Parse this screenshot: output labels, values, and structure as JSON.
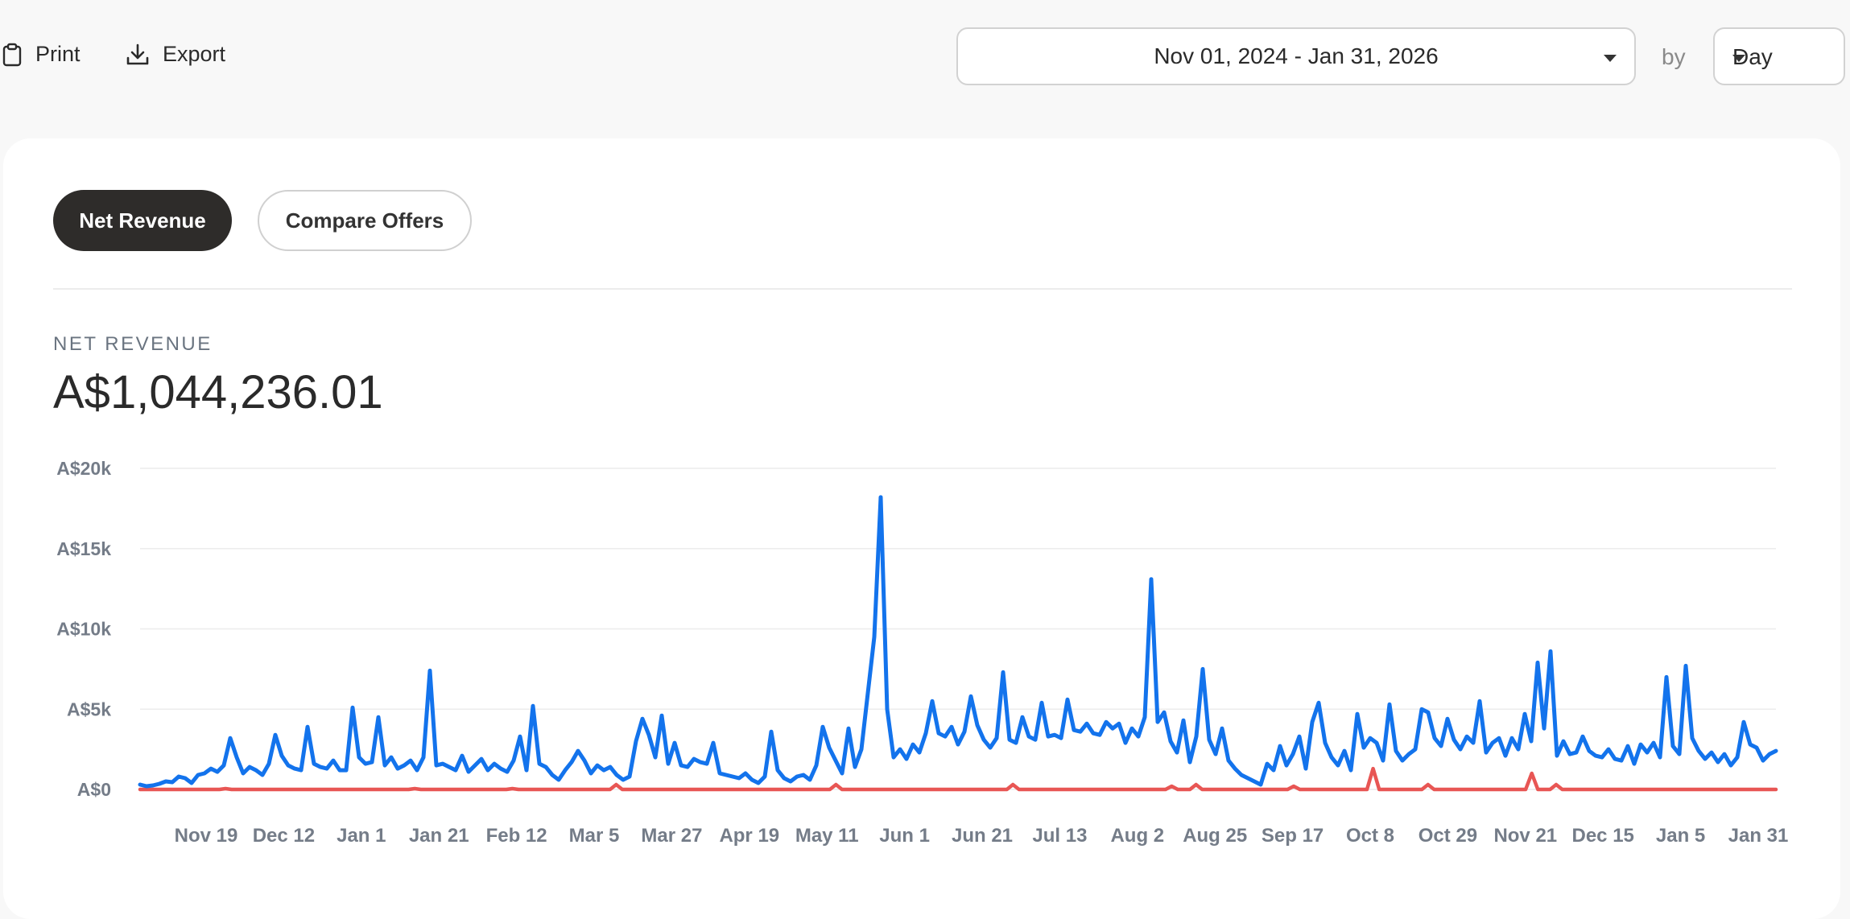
{
  "toolbar": {
    "print_label": "Print",
    "export_label": "Export",
    "date_range": "Nov 01, 2024 - Jan 31, 2026",
    "by_label": "by",
    "period": "Day"
  },
  "tabs": [
    {
      "label": "Net Revenue",
      "active": true
    },
    {
      "label": "Compare Offers",
      "active": false
    }
  ],
  "metric": {
    "label": "NET REVENUE",
    "value": "A$1,044,236.01"
  },
  "colors": {
    "series_primary": "#1373ec",
    "series_secondary": "#e85654",
    "active_tab": "#2e2c2a"
  },
  "chart_data": {
    "type": "line",
    "y_ticks": [
      "A$20k",
      "A$15k",
      "A$10k",
      "A$5k",
      "A$0"
    ],
    "x_ticks": [
      "Nov 19",
      "Dec 12",
      "Jan 1",
      "Jan 21",
      "Feb 12",
      "Mar 5",
      "Mar 27",
      "Apr 19",
      "May 11",
      "Jun 1",
      "Jun 21",
      "Jul 13",
      "Aug 2",
      "Aug 25",
      "Sep 17",
      "Oct 8",
      "Oct 29",
      "Nov 21",
      "Dec 15",
      "Jan 5",
      "Jan 31"
    ],
    "ylim": [
      0,
      20000
    ],
    "grid": true,
    "series": [
      {
        "values": [
          300,
          200,
          250,
          350,
          500,
          450,
          800,
          700,
          400,
          900,
          1000,
          1300,
          1100,
          1500,
          3200,
          2000,
          1000,
          1400,
          1200,
          900,
          1600,
          3400,
          2100,
          1500,
          1300,
          1200,
          3900,
          1600,
          1400,
          1300,
          1800,
          1200,
          1200,
          5100,
          2000,
          1600,
          1700,
          4500,
          1500,
          2000,
          1300,
          1500,
          1800,
          1200,
          2000,
          7400,
          1500,
          1600,
          1400,
          1200,
          2100,
          1100,
          1500,
          1900,
          1200,
          1600,
          1300,
          1100,
          1800,
          3300,
          1200,
          5200,
          1600,
          1400,
          900,
          600,
          1200,
          1700,
          2400,
          1800,
          1000,
          1500,
          1200,
          1400,
          900,
          600,
          800,
          3000,
          4400,
          3400,
          2000,
          4600,
          1600,
          2900,
          1500,
          1400,
          1900,
          1700,
          1600,
          2900,
          1000,
          900,
          800,
          700,
          1000,
          600,
          400,
          800,
          3600,
          1200,
          700,
          500,
          800,
          900,
          600,
          1500,
          3900,
          2600,
          1800,
          1000,
          3800,
          1400,
          2500,
          6000,
          9500,
          18200,
          5000,
          2000,
          2500,
          1900,
          2800,
          2300,
          3500,
          5500,
          3500,
          3300,
          3900,
          2800,
          3600,
          5800,
          4000,
          3100,
          2600,
          3200,
          7300,
          3100,
          2900,
          4500,
          3300,
          3100,
          5400,
          3300,
          3400,
          3200,
          5600,
          3700,
          3600,
          4100,
          3500,
          3400,
          4200,
          3800,
          4100,
          2900,
          3800,
          3300,
          4500,
          13100,
          4200,
          4800,
          3000,
          2300,
          4300,
          1700,
          3300,
          7500,
          3100,
          2200,
          3800,
          1800,
          1300,
          900,
          700,
          500,
          300,
          1600,
          1200,
          2700,
          1500,
          2200,
          3300,
          1300,
          4200,
          5400,
          2900,
          2000,
          1500,
          2400,
          1200,
          4700,
          2600,
          3200,
          2900,
          1800,
          5300,
          2400,
          1800,
          2200,
          2500,
          5000,
          4800,
          3200,
          2700,
          4400,
          3100,
          2500,
          3300,
          2900,
          5500,
          2300,
          2900,
          3200,
          2100,
          3200,
          2500,
          4700,
          3000,
          7900,
          3800,
          8600,
          2100,
          3000,
          2200,
          2300,
          3300,
          2400,
          2100,
          2000,
          2500,
          1900,
          1800,
          2700,
          1600,
          2800,
          2300,
          2900,
          2000,
          7000,
          2700,
          2200,
          7700,
          3200,
          2400,
          1900,
          2300,
          1700,
          2200,
          1500,
          2000,
          4200,
          2800,
          2600,
          1800,
          2200,
          2400
        ]
      },
      {
        "values": [
          0,
          0,
          0,
          0,
          0,
          0,
          0,
          0,
          0,
          0,
          0,
          0,
          0,
          0,
          50,
          0,
          0,
          0,
          0,
          0,
          0,
          0,
          0,
          0,
          0,
          0,
          0,
          0,
          0,
          0,
          0,
          0,
          0,
          0,
          0,
          0,
          0,
          0,
          0,
          0,
          0,
          0,
          0,
          0,
          0,
          50,
          0,
          0,
          0,
          0,
          0,
          0,
          0,
          0,
          0,
          0,
          0,
          0,
          0,
          0,
          0,
          50,
          0,
          0,
          0,
          0,
          0,
          0,
          0,
          0,
          0,
          0,
          0,
          0,
          0,
          0,
          0,
          0,
          300,
          0,
          0,
          0,
          0,
          0,
          0,
          0,
          0,
          0,
          0,
          0,
          0,
          0,
          0,
          0,
          0,
          0,
          0,
          0,
          0,
          0,
          0,
          0,
          0,
          0,
          0,
          0,
          0,
          0,
          0,
          0,
          0,
          0,
          0,
          0,
          300,
          0,
          0,
          0,
          0,
          0,
          0,
          0,
          0,
          0,
          0,
          0,
          0,
          0,
          0,
          0,
          0,
          0,
          0,
          0,
          0,
          0,
          0,
          0,
          0,
          0,
          0,
          0,
          0,
          300,
          0,
          0,
          0,
          0,
          0,
          0,
          0,
          0,
          0,
          0,
          0,
          0,
          0,
          0,
          0,
          0,
          0,
          0,
          0,
          0,
          0,
          0,
          0,
          0,
          0,
          200,
          0,
          0,
          0,
          300,
          0,
          0,
          0,
          0,
          0,
          0,
          0,
          0,
          0,
          0,
          0,
          0,
          0,
          0,
          0,
          200,
          0,
          0,
          0,
          0,
          0,
          0,
          0,
          0,
          0,
          0,
          0,
          0,
          1300,
          0,
          0,
          0,
          0,
          0,
          0,
          0,
          0,
          300,
          0,
          0,
          0,
          0,
          0,
          0,
          0,
          0,
          0,
          0,
          0,
          0,
          0,
          0,
          0,
          0,
          1000,
          0,
          0,
          0,
          300,
          0,
          0,
          0,
          0,
          0,
          0,
          0,
          0,
          0,
          0,
          0,
          0,
          0,
          0,
          0,
          0,
          0,
          0,
          0,
          0,
          0,
          0,
          0,
          0,
          0,
          0,
          0,
          0,
          0,
          0,
          0,
          0,
          0,
          0,
          0,
          0
        ]
      }
    ]
  }
}
